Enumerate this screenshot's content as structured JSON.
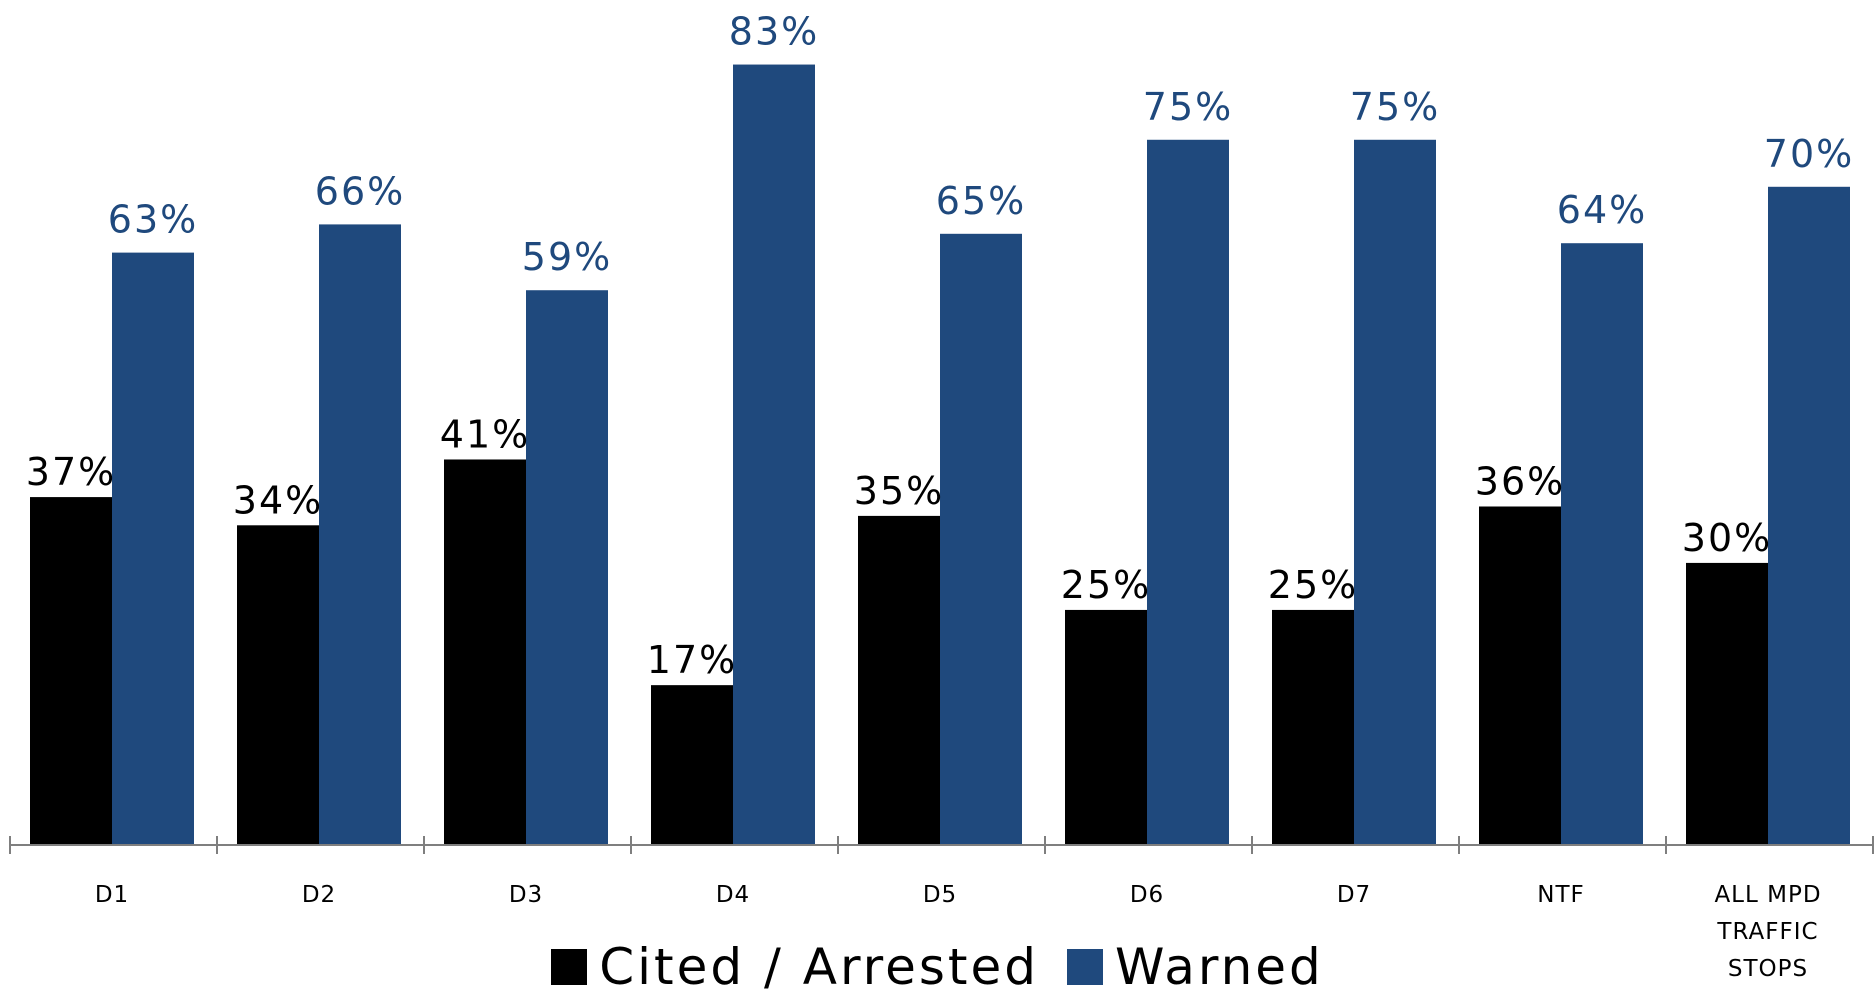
{
  "chart_data": {
    "type": "bar",
    "categories": [
      "D1",
      "D2",
      "D3",
      "D4",
      "D5",
      "D6",
      "D7",
      "NTF",
      "ALL MPD TRAFFIC STOPS"
    ],
    "series": [
      {
        "name": "Cited / Arrested",
        "color": "#000000",
        "values": [
          37,
          34,
          41,
          17,
          35,
          25,
          25,
          36,
          30
        ],
        "labels": [
          "37%",
          "34%",
          "41%",
          "17%",
          "35%",
          "25%",
          "25%",
          "36%",
          "30%"
        ]
      },
      {
        "name": "Warned",
        "color": "#1f497d",
        "values": [
          63,
          66,
          59,
          83,
          65,
          75,
          75,
          64,
          70
        ],
        "labels": [
          "63%",
          "66%",
          "59%",
          "83%",
          "65%",
          "75%",
          "75%",
          "64%",
          "70%"
        ]
      }
    ],
    "value_unit": "%",
    "ylim": [
      0,
      83
    ],
    "grid": false,
    "legend_position": "bottom"
  },
  "colors": {
    "cited": "#000000",
    "warned": "#1f497d",
    "axis": "#7f7f7f",
    "label_dark": "#000000",
    "label_blue": "#1f497d"
  }
}
